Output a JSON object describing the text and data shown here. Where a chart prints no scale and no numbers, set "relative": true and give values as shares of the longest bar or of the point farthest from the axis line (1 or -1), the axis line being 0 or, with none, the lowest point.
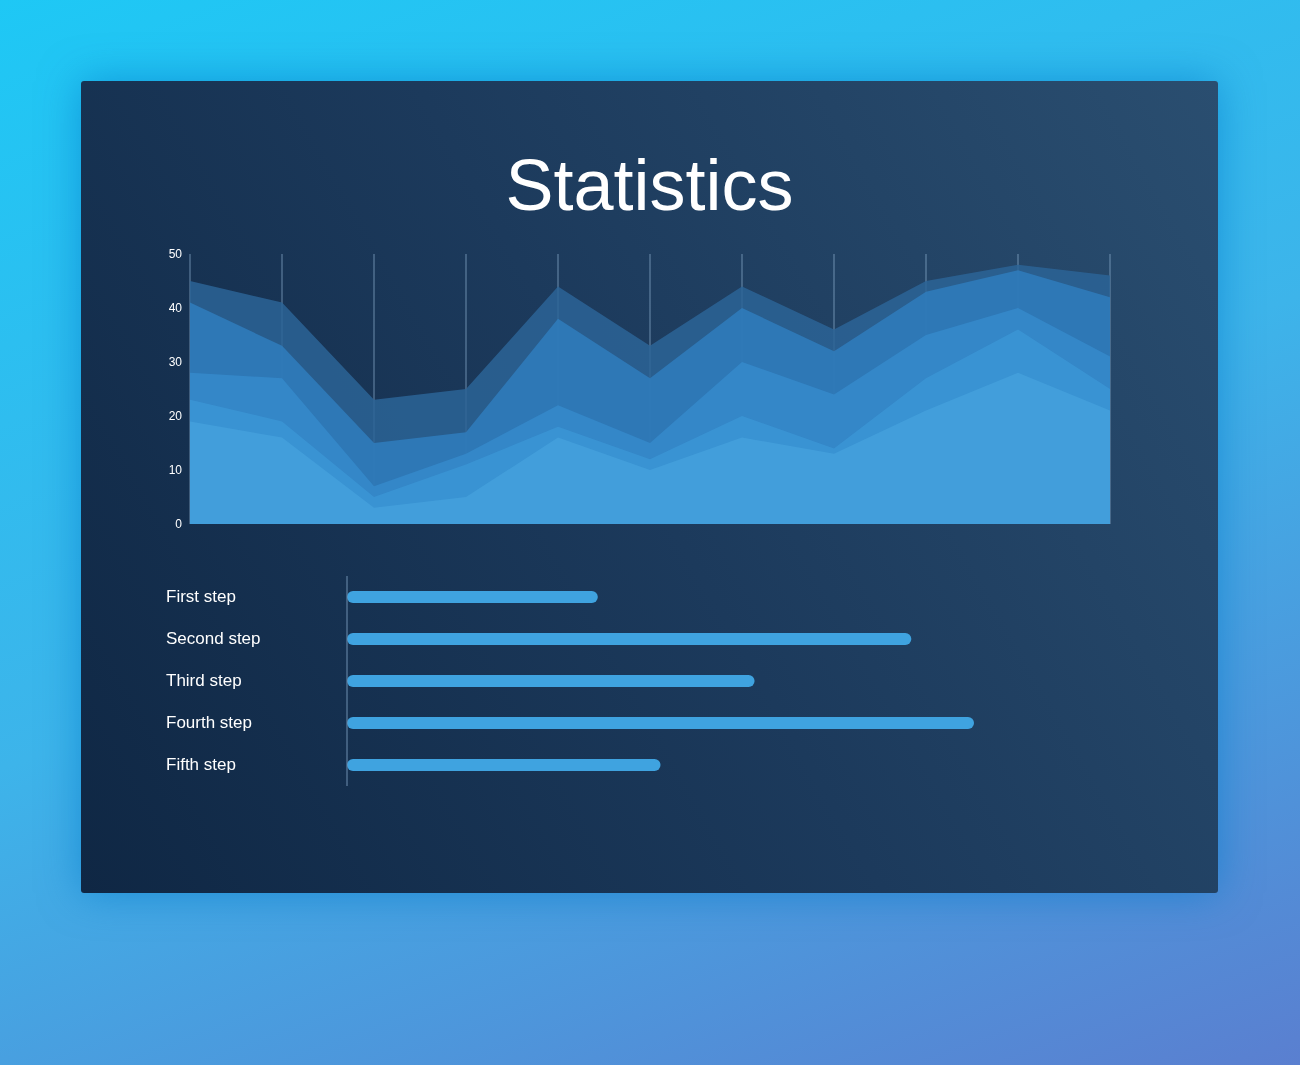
{
  "chart_data": [
    {
      "type": "area",
      "title": "Statistics",
      "categories": [
        null,
        null,
        null,
        null,
        null,
        null,
        null,
        null,
        null,
        null,
        null
      ],
      "ylim": [
        0,
        50
      ],
      "yticks": [
        0,
        10,
        20,
        30,
        40,
        50
      ],
      "grid": "x",
      "tick_labels": "y",
      "series": [
        {
          "color": "#2c6496",
          "values": [
            45,
            41,
            23,
            25,
            44,
            33,
            44,
            36,
            45,
            48,
            46
          ]
        },
        {
          "color": "#2f7cbd",
          "values": [
            41,
            33,
            15,
            17,
            38,
            27,
            40,
            32,
            43,
            47,
            42
          ]
        },
        {
          "color": "#3589cb",
          "values": [
            28,
            27,
            7,
            13,
            22,
            15,
            30,
            24,
            35,
            40,
            31
          ]
        },
        {
          "color": "#3b95d5",
          "values": [
            23,
            19,
            5,
            11,
            18,
            12,
            20,
            14,
            27,
            36,
            25
          ]
        },
        {
          "color": "#44a0dc",
          "values": [
            19,
            16,
            3,
            5,
            16,
            10,
            16,
            13,
            21,
            28,
            21
          ]
        }
      ]
    },
    {
      "type": "bar",
      "orientation": "horizontal",
      "relative": true,
      "categories": [
        "First step",
        "Second step",
        "Third step",
        "Fourth step",
        "Fifth step"
      ],
      "values": [
        0.4,
        0.9,
        0.65,
        1,
        0.5
      ],
      "color": "#3fa3e0"
    }
  ]
}
